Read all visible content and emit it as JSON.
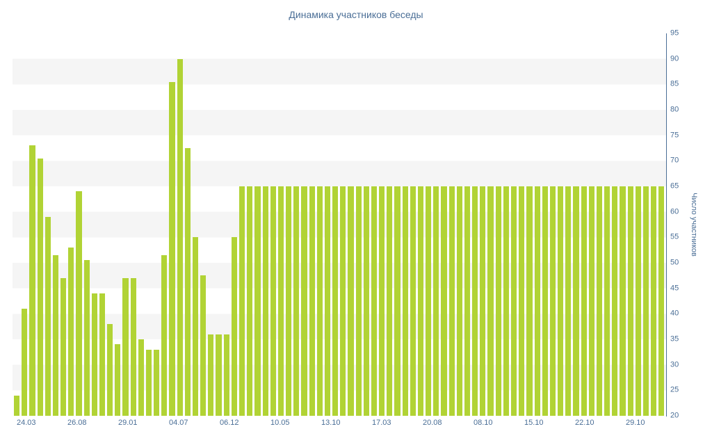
{
  "colors": {
    "bar": "#b1d335",
    "stripe": "#f5f5f5",
    "axis_text": "#4a6e96",
    "axis_line": "#4a6e96",
    "background": "#ffffff"
  },
  "chart_data": {
    "type": "bar",
    "title": "Динамика участников беседы",
    "xlabel": "",
    "ylabel": "Число участников",
    "ylim": [
      20,
      95
    ],
    "grid": "alternating horizontal 5-unit bands (white / light gray), no gridlines",
    "legend": null,
    "y_ticks": [
      95,
      90,
      85,
      80,
      75,
      70,
      65,
      60,
      55,
      50,
      45,
      40,
      35,
      30,
      25,
      20
    ],
    "x_tick_labels": [
      "24.03",
      "26.08",
      "29.01",
      "04.07",
      "06.12",
      "10.05",
      "13.10",
      "17.03",
      "20.08",
      "08.10",
      "15.10",
      "22.10",
      "29.10"
    ],
    "values": [
      24,
      41,
      73,
      70.5,
      59,
      51.5,
      47,
      53,
      64,
      50.5,
      44,
      44,
      38,
      34,
      47,
      47,
      35,
      33,
      33,
      51.5,
      85.5,
      90,
      72.5,
      55,
      47.5,
      36,
      36,
      36,
      55,
      65,
      65,
      65,
      65,
      65,
      65,
      65,
      65,
      65,
      65,
      65,
      65,
      65,
      65,
      65,
      65,
      65,
      65,
      65,
      65,
      65,
      65,
      65,
      65,
      65,
      65,
      65,
      65,
      65,
      65,
      65,
      65,
      65,
      65,
      65,
      65,
      65,
      65,
      65,
      65,
      65,
      65,
      65,
      65,
      65,
      65,
      65,
      65,
      65,
      65,
      65,
      65,
      65,
      65,
      65
    ]
  }
}
